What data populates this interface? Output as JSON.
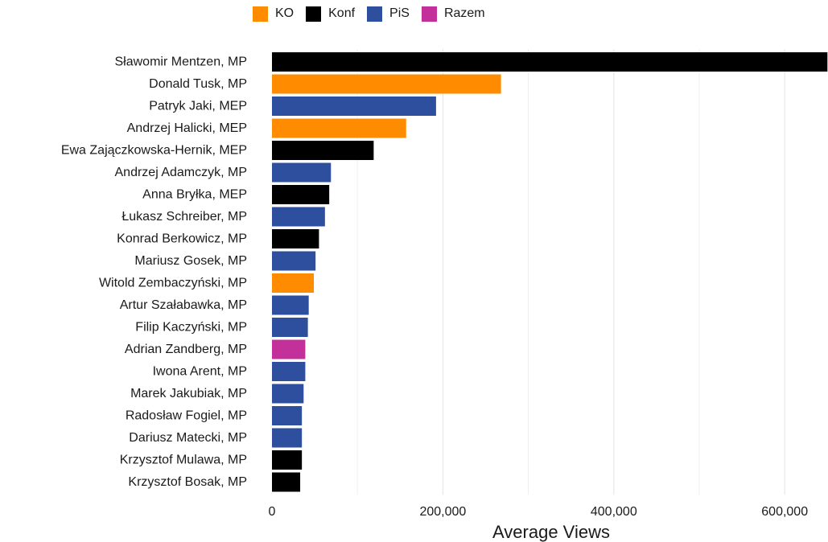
{
  "chart_data": {
    "type": "bar",
    "orientation": "horizontal",
    "xlabel": "Average Views",
    "ylabel": "",
    "xlim": [
      0,
      650000
    ],
    "x_ticks": [
      0,
      200000,
      400000,
      600000
    ],
    "x_tick_labels": [
      "0",
      "200,000",
      "400,000",
      "600,000"
    ],
    "grid": true,
    "legend_position": "top",
    "legend": [
      {
        "name": "KO",
        "color": "#ff8c00"
      },
      {
        "name": "Konf",
        "color": "#000000"
      },
      {
        "name": "PiS",
        "color": "#2e4f9e"
      },
      {
        "name": "Razem",
        "color": "#c4309a"
      }
    ],
    "categories": [
      "Sławomir Mentzen, MP",
      "Donald Tusk, MP",
      "Patryk Jaki, MEP",
      "Andrzej Halicki, MEP",
      "Ewa Zajączkowska-Hernik, MEP",
      "Andrzej Adamczyk, MP",
      "Anna Bryłka, MEP",
      "Łukasz Schreiber, MP",
      "Konrad Berkowicz, MP",
      "Mariusz Gosek, MP",
      "Witold Zembaczyński, MP",
      "Artur Szałabawka, MP",
      "Filip Kaczyński, MP",
      "Adrian Zandberg, MP",
      "Iwona Arent, MP",
      "Marek Jakubiak, MP",
      "Radosław Fogiel, MP",
      "Dariusz Matecki, MP",
      "Krzysztof Mulawa, MP",
      "Krzysztof Bosak, MP"
    ],
    "values": [
      660000,
      268000,
      192000,
      157000,
      119000,
      69000,
      67000,
      62000,
      55000,
      51000,
      49000,
      43000,
      42000,
      39000,
      39000,
      37000,
      35000,
      35000,
      35000,
      33000
    ],
    "parties": [
      "Konf",
      "KO",
      "PiS",
      "KO",
      "Konf",
      "PiS",
      "Konf",
      "PiS",
      "Konf",
      "PiS",
      "KO",
      "PiS",
      "PiS",
      "Razem",
      "PiS",
      "PiS",
      "PiS",
      "PiS",
      "Konf",
      "Konf"
    ]
  }
}
